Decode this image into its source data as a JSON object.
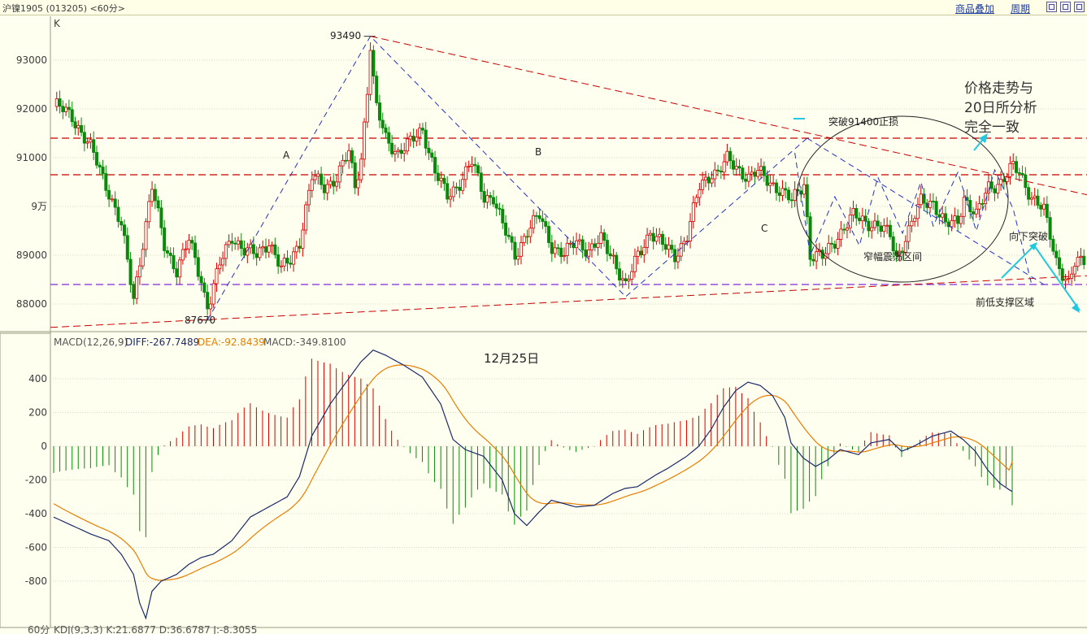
{
  "window": {
    "title": "沪镍1905 (013205) <60分>",
    "buttons": {
      "overlay": "商品叠加",
      "period": "周期"
    },
    "bottom_hint": "60分",
    "bottom_indicator": "KDJ(9,3,3) K:21.6877 D:36.6787 J:-8.3055"
  },
  "colors": {
    "up": "#d20000",
    "down": "#0a8a0a",
    "diff": "#1a2a6a",
    "dea": "#e87d00",
    "trend_red": "#c80000",
    "trend_blue": "#2232c8",
    "support_purple": "#7a2ad8",
    "arrow": "#22c8e0",
    "background": "#fffff0"
  },
  "chart_data": [
    {
      "type": "candlestick",
      "panel": "price",
      "panel_label": "K",
      "y_ticks": [
        88000,
        89000,
        "9万",
        91000,
        92000,
        93000
      ],
      "ylim": [
        87500,
        94000
      ],
      "n_bars": 220,
      "key_prices": {
        "high": 93490,
        "low": 87670
      },
      "horizontal_levels": [
        {
          "value": 91400,
          "style": "red-dashed"
        },
        {
          "value": 90650,
          "style": "red-dashed"
        },
        {
          "value": 88400,
          "style": "purple-dashed"
        }
      ],
      "annotations": {
        "A": "A",
        "B": "B",
        "C": "C",
        "high": "93490",
        "low": "87670",
        "breakout": "突破91400止损",
        "range": "窄幅震荡区间",
        "support": "前低支撑区域",
        "down_break": "向下突破",
        "note": [
          "价格走势与",
          "20日所分析",
          "完全一致"
        ]
      }
    },
    {
      "type": "bar+line",
      "panel": "macd",
      "name": "MACD(12,26,9)",
      "DIFF": -267.7489,
      "DEA": -92.8439,
      "MACD": -349.81,
      "labels": {
        "diff": "DIFF:-267.7489",
        "dea": "DEA:-92.8439",
        "macd": "MACD:-349.8100"
      },
      "y_ticks": [
        400,
        200,
        0,
        -200,
        -400,
        -600,
        -800
      ],
      "ylim": [
        -1050,
        600
      ],
      "date_note": "12月25日"
    }
  ]
}
